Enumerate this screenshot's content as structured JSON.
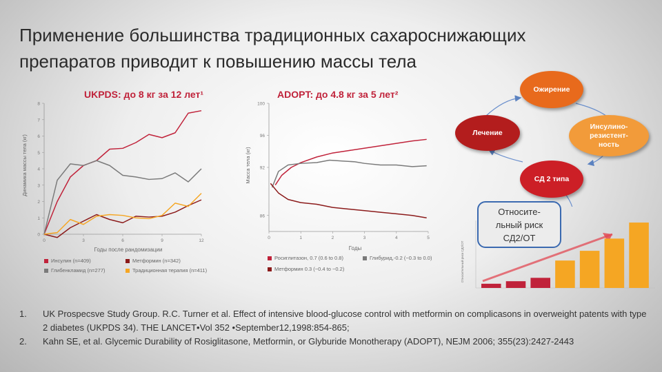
{
  "slide": {
    "title_line1": "Применение большинства традиционных сахароснижающих",
    "title_line2": "препаратов приводит к повышению массы тела"
  },
  "ukpds": {
    "heading": "UKPDS: до 8 кг за 12 лет¹",
    "legend": {
      "insulin": "Инсулин (n=409)",
      "metformin": "Метформин (n=342)",
      "glib": "Глибенкламид (n=277)",
      "conventional": "Традиционная терапия (n=411)"
    }
  },
  "adopt": {
    "heading": "ADOPT: до 4.8 кг за 5 лет²",
    "legend": {
      "rosi": "Росиглитазон, 0.7 (0.6 to 0.8)",
      "glyb": "Глибурид,-0.2 (−0.3 to 0.0)",
      "met": "Метформин 0.3 (−0.4 to −0.2)"
    }
  },
  "cycle": {
    "obesity": "Ожирение",
    "insulin_res": "Инсулино-резистент-ность",
    "insulin_res_lines": [
      "Инсулино-",
      "резистент-",
      "ность"
    ],
    "t2d": "СД 2 типа",
    "treatment": "Лечение"
  },
  "risk": {
    "box_lines": [
      "Относите-",
      "льный риск",
      "СД2/ОТ"
    ],
    "ylabel": "Относительный риск СД2/ОТ"
  },
  "references": [
    {
      "num": "1.",
      "text": "UK Prospecsve Study Group. R.C. Turner et al. Effect of intensive blood-glucose control with metformin on complicasons in overweight patents with type 2 diabetes (UKPDS 34). THE LANCET•Vol 352 •September12,1998:854-865;"
    },
    {
      "num": "2.",
      "text": "Kahn SE, et al. Glycemic Durability of Rosiglitasone, Metformin, or Glyburide Monotherapy (ADOPT), NEJM 2006; 355(23):2427-2443"
    }
  ],
  "colors": {
    "red": "#c0223a",
    "dark_red": "#8b1a1a",
    "gray": "#7a7a7a",
    "orange": "#f5a623",
    "node_orange": "#e86a1c",
    "node_darkred": "#b31d1d",
    "node_lightorange": "#f29b3a",
    "node_red": "#cc1f26",
    "box_border": "#3a69b0"
  },
  "chart_data": [
    {
      "type": "line",
      "title": "UKPDS: до 8 кг за 12 лет¹",
      "xlabel": "Годы после рандомизации",
      "ylabel": "Динамика массы тела (кг)",
      "xlim": [
        0,
        12
      ],
      "ylim": [
        0,
        8
      ],
      "xticks": [
        0,
        3,
        6,
        9,
        12
      ],
      "yticks": [
        0,
        1,
        2,
        3,
        4,
        5,
        6,
        7,
        8
      ],
      "x": [
        0,
        1,
        2,
        3,
        4,
        5,
        6,
        7,
        8,
        9,
        10,
        11,
        12
      ],
      "series": [
        {
          "name": "Инсулин (n=409)",
          "color": "#c0223a",
          "values": [
            0,
            2.0,
            3.5,
            4.2,
            4.5,
            5.2,
            5.25,
            5.6,
            6.1,
            5.9,
            6.2,
            7.4,
            7.55
          ]
        },
        {
          "name": "Глибенкламид (n=277)",
          "color": "#7a7a7a",
          "values": [
            0,
            3.3,
            4.3,
            4.2,
            4.5,
            4.2,
            3.6,
            3.5,
            3.35,
            3.4,
            3.75,
            3.2,
            4.0
          ]
        },
        {
          "name": "Метформин (n=342)",
          "color": "#8b1a1a",
          "values": [
            0,
            -0.2,
            0.4,
            0.8,
            1.2,
            0.9,
            0.7,
            1.1,
            1.05,
            1.1,
            1.35,
            1.75,
            2.1
          ]
        },
        {
          "name": "Традиционная терапия (n=411)",
          "color": "#f5a623",
          "values": [
            0,
            0.1,
            0.9,
            0.6,
            1.1,
            1.2,
            1.15,
            1.0,
            0.95,
            1.15,
            1.9,
            1.7,
            2.5
          ]
        }
      ]
    },
    {
      "type": "line",
      "title": "ADOPT: до 4.8 кг за 5 лет²",
      "xlabel": "Годы",
      "ylabel": "Масса тела (кг)",
      "xlim": [
        0,
        5
      ],
      "ylim": [
        84,
        100
      ],
      "xticks": [
        0,
        1,
        2,
        3,
        4,
        5
      ],
      "yticks": [
        86,
        92,
        96,
        100
      ],
      "series": [
        {
          "name": "Росиглитазон, 0.7 (0.6 to 0.8)",
          "color": "#c0223a",
          "x": [
            0.2,
            0.4,
            0.7,
            1.0,
            1.5,
            2.0,
            2.5,
            3.0,
            3.5,
            4.0,
            4.5,
            4.95
          ],
          "values": [
            89.8,
            91.0,
            92.0,
            92.6,
            93.3,
            93.8,
            94.1,
            94.4,
            94.7,
            95.0,
            95.3,
            95.5
          ]
        },
        {
          "name": "Глибурид,-0.2 (−0.3 to 0.0)",
          "color": "#7a7a7a",
          "x": [
            0.1,
            0.3,
            0.6,
            1.0,
            1.5,
            1.9,
            2.3,
            2.7,
            3.0,
            3.5,
            4.0,
            4.5,
            4.95
          ],
          "values": [
            89.5,
            91.5,
            92.3,
            92.5,
            92.6,
            92.9,
            92.8,
            92.7,
            92.5,
            92.3,
            92.3,
            92.1,
            92.2
          ]
        },
        {
          "name": "Метформин 0.3 (−0.4 to −0.2)",
          "color": "#8b1a1a",
          "x": [
            0.05,
            0.3,
            0.6,
            1.0,
            1.5,
            2.0,
            2.5,
            3.0,
            3.5,
            4.0,
            4.5,
            4.95
          ],
          "values": [
            90.0,
            88.8,
            88.0,
            87.6,
            87.4,
            87.0,
            86.8,
            86.6,
            86.4,
            86.2,
            86.0,
            85.7
          ]
        }
      ]
    },
    {
      "type": "bar",
      "ylabel": "Относительный риск СД2/ОТ",
      "values": [
        1,
        1.6,
        2.4,
        6.5,
        8.8,
        11.7,
        15.5
      ],
      "colors": [
        "#c0223a",
        "#c0223a",
        "#c0223a",
        "#f5a623",
        "#f5a623",
        "#f5a623",
        "#f5a623"
      ]
    }
  ]
}
